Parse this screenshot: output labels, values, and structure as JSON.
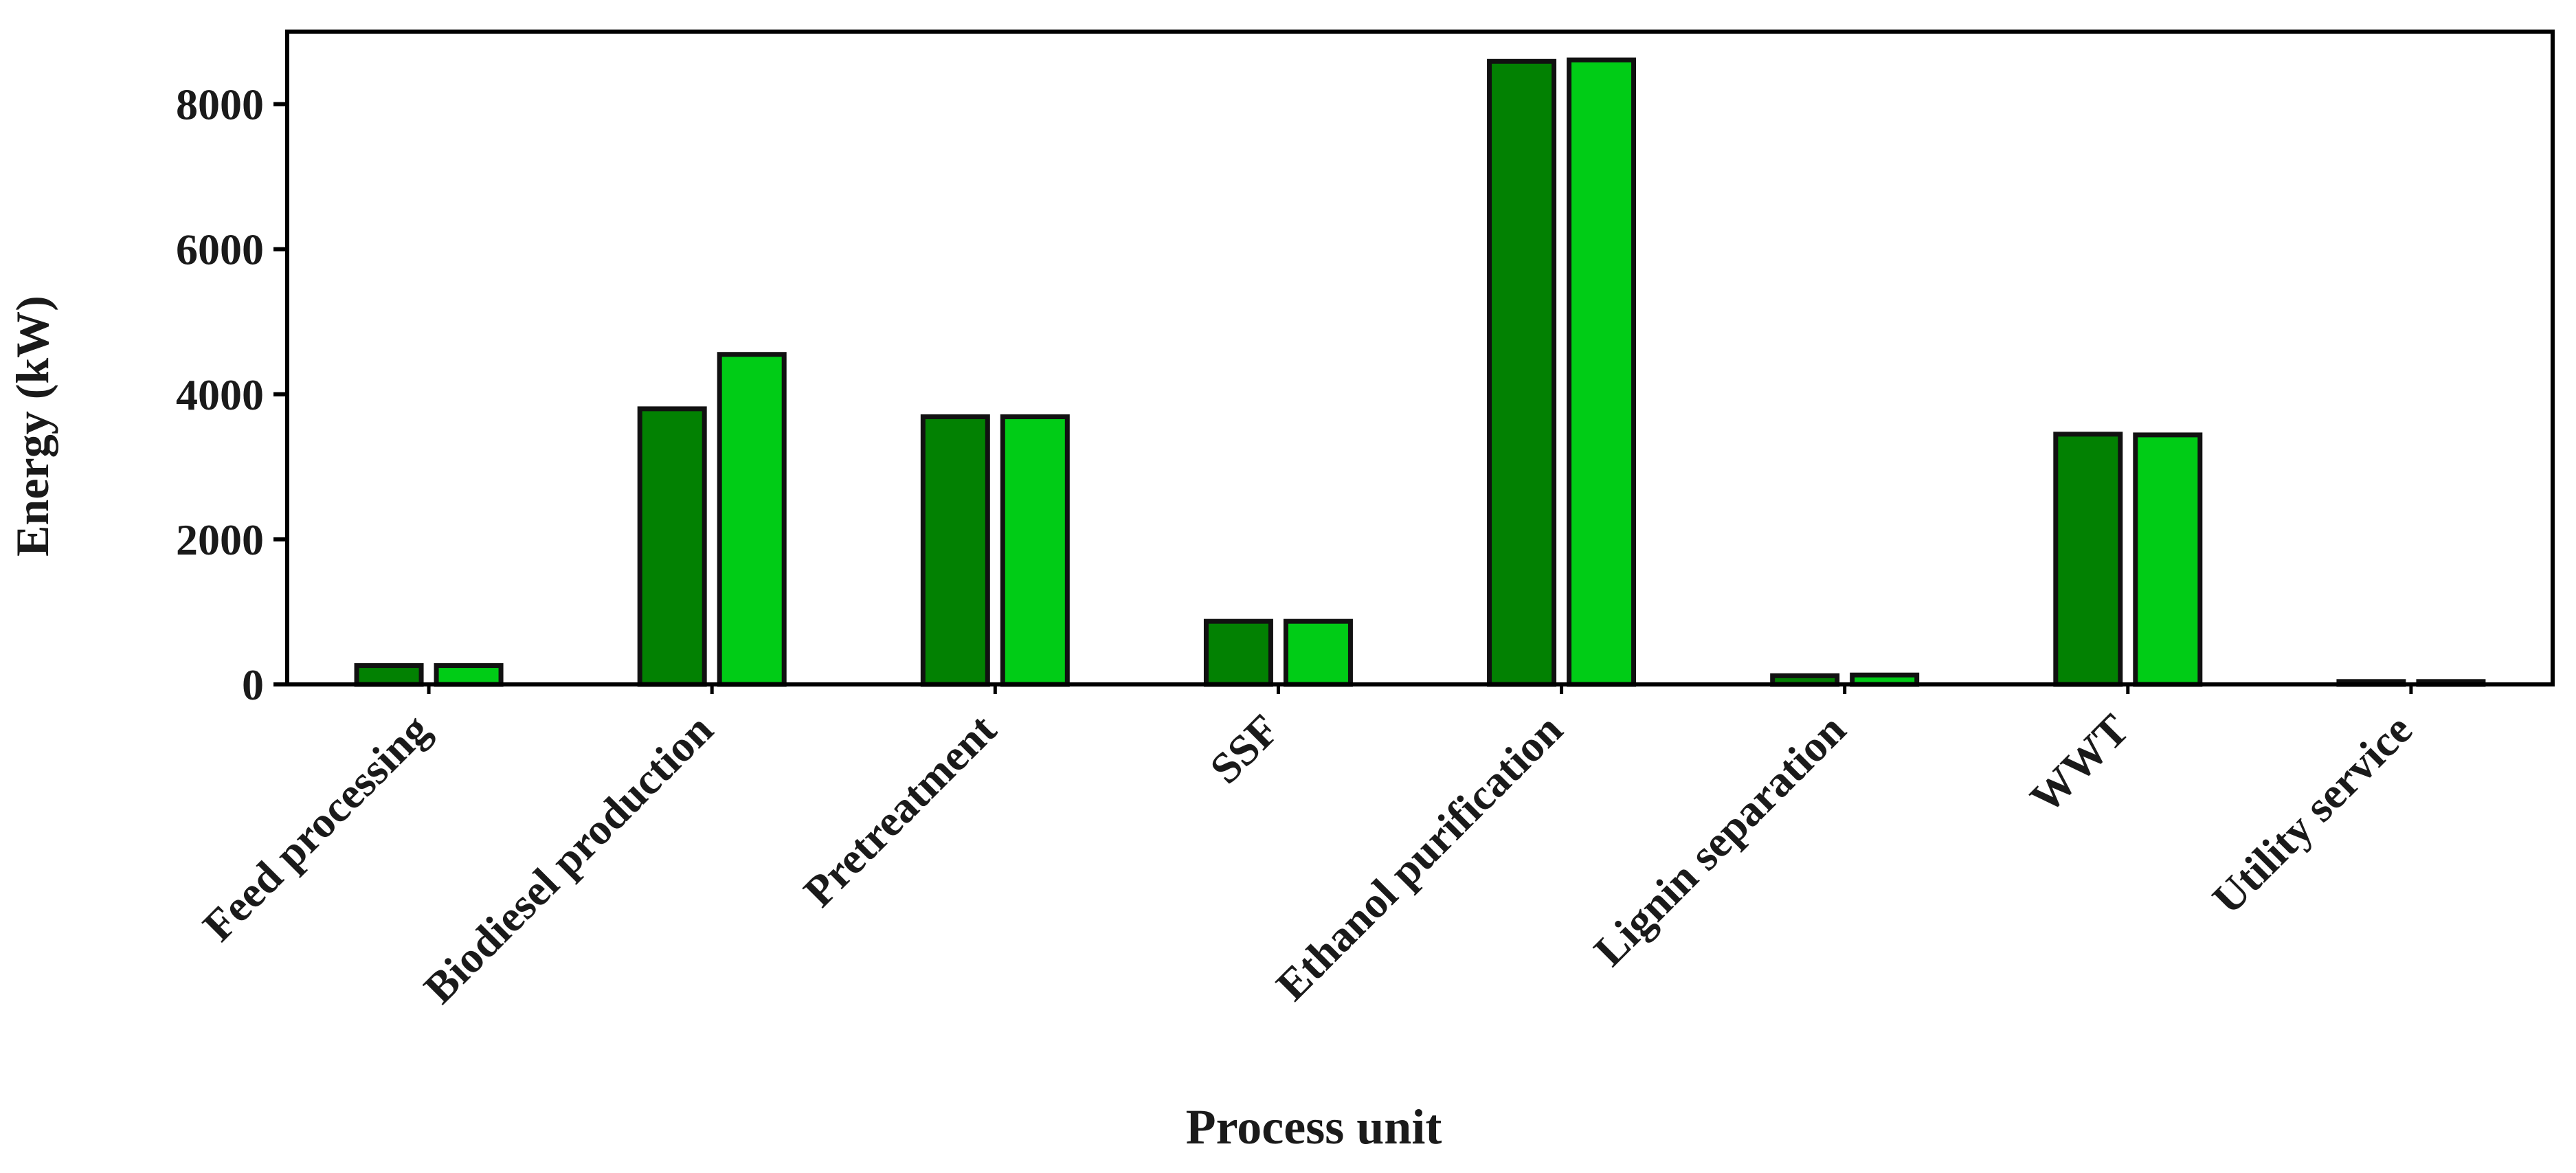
{
  "chart_data": {
    "type": "bar",
    "title": "",
    "xlabel": "Process unit",
    "ylabel": "Energy (kW)",
    "ylim": [
      0,
      9000
    ],
    "yticks": [
      0,
      2000,
      4000,
      6000,
      8000
    ],
    "grid": false,
    "legend": "none",
    "categories": [
      "Feed processing",
      "Biodiesel production",
      "Pretreatment",
      "SSF",
      "Ethanol purification",
      "Lignin separation",
      "WWT",
      "Utility service"
    ],
    "series": [
      {
        "values": [
          260,
          3800,
          3690,
          870,
          8590,
          120,
          3450,
          40
        ],
        "color": "#028102"
      },
      {
        "values": [
          260,
          4550,
          3690,
          870,
          8610,
          130,
          3440,
          40
        ],
        "color": "#00cc16"
      }
    ]
  }
}
